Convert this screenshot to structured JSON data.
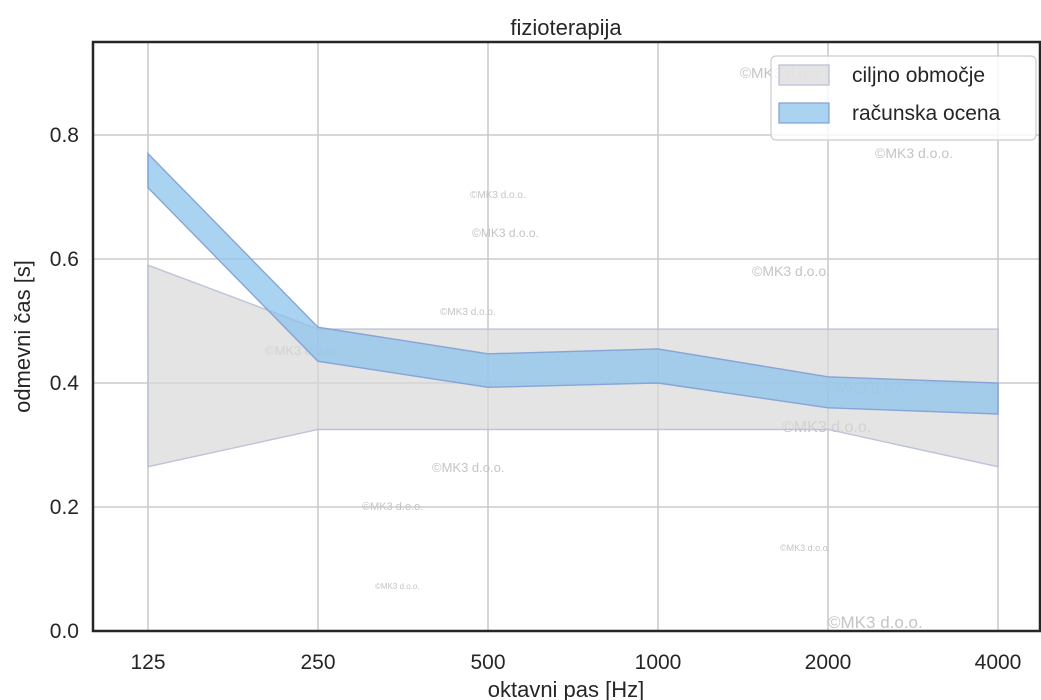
{
  "chart_data": {
    "type": "area",
    "title": "fizioterapija",
    "xlabel": "oktavni pas [Hz]",
    "ylabel": "odmevni čas [s]",
    "categories": [
      "125",
      "250",
      "500",
      "1000",
      "2000",
      "4000"
    ],
    "ylim": [
      0,
      0.95
    ],
    "yticks": [
      "0.0",
      "0.2",
      "0.4",
      "0.6",
      "0.8"
    ],
    "grid": true,
    "legend_position": "top-right",
    "series": [
      {
        "name": "ciljno območje",
        "lower": [
          0.265,
          0.325,
          0.325,
          0.325,
          0.325,
          0.265
        ],
        "upper": [
          0.59,
          0.487,
          0.487,
          0.487,
          0.487,
          0.487
        ],
        "color": "#d9d9d9",
        "edge_color": "#b8bfd6"
      },
      {
        "name": "računska ocena",
        "lower": [
          0.715,
          0.435,
          0.393,
          0.4,
          0.36,
          0.35
        ],
        "upper": [
          0.77,
          0.49,
          0.447,
          0.455,
          0.41,
          0.4
        ],
        "color": "#8ec3ec",
        "edge_color": "#7f9fd4"
      }
    ],
    "watermark": "©MK3 d.o.o."
  }
}
